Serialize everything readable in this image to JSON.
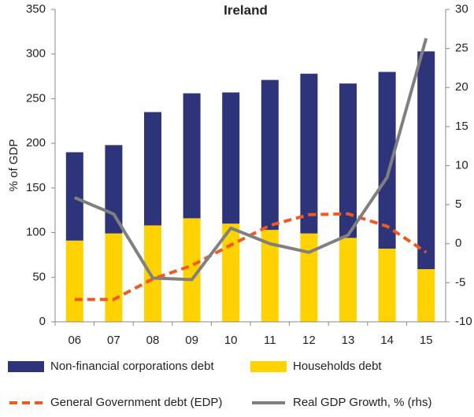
{
  "chart_data": {
    "type": "bar",
    "stacked": true,
    "title": "Ireland",
    "y_label": "% of GDP",
    "categories": [
      "06",
      "07",
      "08",
      "09",
      "10",
      "11",
      "12",
      "13",
      "14",
      "15"
    ],
    "series": [
      {
        "name": "Households debt",
        "type": "bar",
        "color": "#ffd200",
        "values": [
          91,
          99,
          108,
          116,
          110,
          103,
          99,
          94,
          82,
          59
        ]
      },
      {
        "name": "Non-financial corporations debt",
        "type": "bar",
        "color": "#2e3479",
        "values": [
          99,
          99,
          127,
          140,
          147,
          168,
          179,
          173,
          198,
          244
        ]
      },
      {
        "name": "General Government debt (EDP)",
        "type": "line",
        "dashed": true,
        "color": "#f05a22",
        "values": [
          25,
          25,
          48,
          63,
          86,
          108,
          120,
          121,
          107,
          78
        ]
      },
      {
        "name": "Real GDP Growth, % (rhs)",
        "type": "line",
        "axis": "y2",
        "color": "#808080",
        "values": [
          5.9,
          3.8,
          -4.4,
          -4.6,
          2.0,
          0.0,
          -1.1,
          1.1,
          8.5,
          26.3
        ]
      }
    ],
    "ylim": [
      0,
      350
    ],
    "yticks": [
      0,
      50,
      100,
      150,
      200,
      250,
      300,
      350
    ],
    "y2lim": [
      -10,
      30
    ],
    "y2ticks": [
      -10,
      -5,
      0,
      5,
      10,
      15,
      20,
      25,
      30
    ]
  }
}
